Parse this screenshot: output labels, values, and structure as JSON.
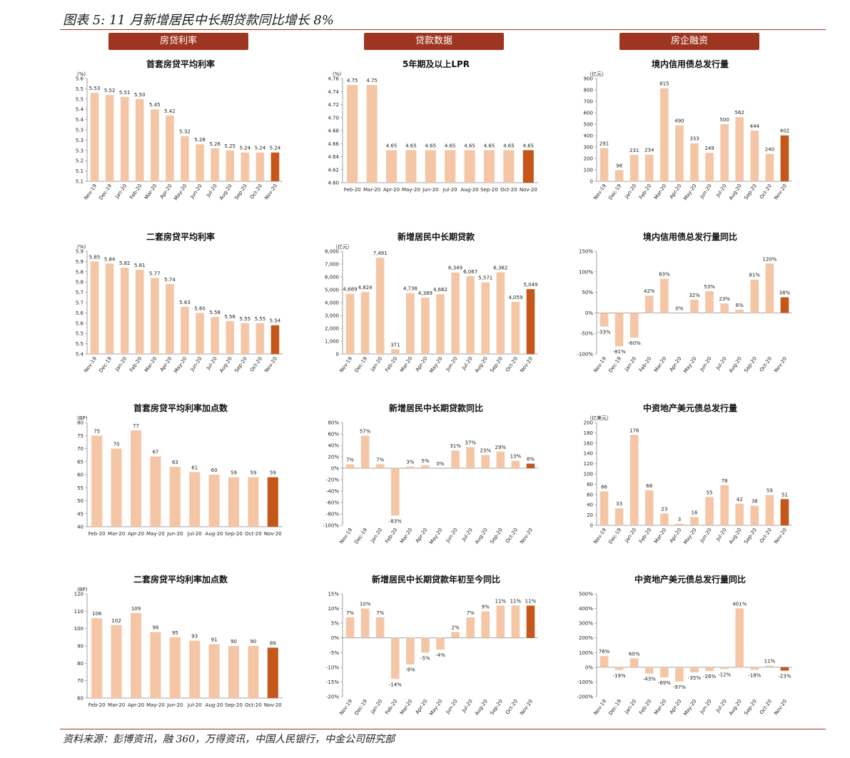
{
  "figure_title": "图表 5: 11 月新增居民中长期贷款同比增长 8%",
  "headers": [
    "房贷利率",
    "贷款数据",
    "房企融资"
  ],
  "source": "资料来源：彭博资讯，融 360，万得资讯，中国人民银行，中金公司研究部",
  "colors": {
    "bar": "#f5c6a5",
    "highlight": "#c5571a",
    "axis": "#888888",
    "header": "#9e3520"
  },
  "chart_data": [
    {
      "id": "c1",
      "type": "bar",
      "title": "首套房贷平均利率",
      "unit": "(%)",
      "ylim": [
        5.1,
        5.6
      ],
      "ystep": 0.05,
      "ydec": 1,
      "rot": true,
      "categories": [
        "Nov-19",
        "Dec-19",
        "Jan-20",
        "Feb-20",
        "Mar-20",
        "Apr-20",
        "May-20",
        "Jun-20",
        "Jul-20",
        "Aug-20",
        "Sep-20",
        "Oct-20",
        "Nov-20"
      ],
      "values": [
        5.53,
        5.52,
        5.51,
        5.5,
        5.45,
        5.42,
        5.32,
        5.28,
        5.26,
        5.25,
        5.24,
        5.24,
        5.24
      ],
      "labels": [
        "5.53",
        "5.52",
        "5.51",
        "5.50",
        "5.45",
        "5.42",
        "5.32",
        "5.28",
        "5.26",
        "5.25",
        "5.24",
        "5.24",
        "5.24"
      ]
    },
    {
      "id": "c2",
      "type": "bar",
      "title": "5年期及以上LPR",
      "unit": "(%)",
      "ylim": [
        4.6,
        4.76
      ],
      "ystep": 0.02,
      "ydec": 2,
      "rot": false,
      "categories": [
        "Feb-20",
        "Mar-20",
        "Apr-20",
        "May-20",
        "Jun-20",
        "Jul-20",
        "Aug-20",
        "Sep-20",
        "Oct-20",
        "Nov-20"
      ],
      "values": [
        4.75,
        4.75,
        4.65,
        4.65,
        4.65,
        4.65,
        4.65,
        4.65,
        4.65,
        4.65
      ],
      "labels": [
        "4.75",
        "4.75",
        "4.65",
        "4.65",
        "4.65",
        "4.65",
        "4.65",
        "4.65",
        "4.65",
        "4.65"
      ]
    },
    {
      "id": "c3",
      "type": "bar",
      "title": "境内信用债总发行量",
      "unit": "（亿元）",
      "ylim": [
        0,
        900
      ],
      "ystep": 100,
      "ydec": 0,
      "rot": true,
      "categories": [
        "Nov-19",
        "Dec-19",
        "Jan-20",
        "Feb-20",
        "Mar-20",
        "Apr-20",
        "May-20",
        "Jun-20",
        "Jul-20",
        "Aug-20",
        "Sep-20",
        "Oct-20",
        "Nov-20"
      ],
      "values": [
        291,
        98,
        231,
        234,
        815,
        490,
        333,
        249,
        500,
        562,
        444,
        240,
        402
      ],
      "labels": [
        "291",
        "98",
        "231",
        "234",
        "815",
        "490",
        "333",
        "249",
        "500",
        "562",
        "444",
        "240",
        "402"
      ]
    },
    {
      "id": "c4",
      "type": "bar",
      "title": "二套房贷平均利率",
      "unit": "(%)",
      "ylim": [
        5.4,
        5.9
      ],
      "ystep": 0.05,
      "ydec": 1,
      "rot": true,
      "categories": [
        "Nov-19",
        "Dec-19",
        "Jan-20",
        "Feb-20",
        "Mar-20",
        "Apr-20",
        "May-20",
        "Jun-20",
        "Jul-20",
        "Aug-20",
        "Sep-20",
        "Oct-20",
        "Nov-20"
      ],
      "values": [
        5.85,
        5.84,
        5.82,
        5.81,
        5.77,
        5.74,
        5.63,
        5.6,
        5.58,
        5.56,
        5.55,
        5.55,
        5.54
      ],
      "labels": [
        "5.85",
        "5.84",
        "5.82",
        "5.81",
        "5.77",
        "5.74",
        "5.63",
        "5.60",
        "5.58",
        "5.56",
        "5.55",
        "5.55",
        "5.54"
      ]
    },
    {
      "id": "c5",
      "type": "bar",
      "title": "新增居民中长期贷款",
      "unit": "（亿元）",
      "ylim": [
        0,
        8000
      ],
      "ystep": 1000,
      "ydec": 0,
      "comma": true,
      "rot": true,
      "categories": [
        "Nov-19",
        "Dec-19",
        "Jan-20",
        "Feb-20",
        "Mar-20",
        "Apr-20",
        "May-20",
        "Jun-20",
        "Jul-20",
        "Aug-20",
        "Sep-20",
        "Oct-20",
        "Nov-20"
      ],
      "values": [
        4689,
        4824,
        7491,
        371,
        4738,
        4389,
        4662,
        6349,
        6067,
        5571,
        6362,
        4059,
        5049
      ],
      "labels": [
        "4,689",
        "4,824",
        "7,491",
        "371",
        "4,738",
        "4,389",
        "4,662",
        "6,349",
        "6,067",
        "5,571",
        "6,362",
        "4,059",
        "5,049"
      ]
    },
    {
      "id": "c6",
      "type": "bar",
      "title": "境内信用债总发行量同比",
      "unit": "",
      "ylim": [
        -100,
        150
      ],
      "ystep": 50,
      "ydec": 0,
      "pct": true,
      "rot": true,
      "categories": [
        "Nov-19",
        "Dec-19",
        "Jan-20",
        "Feb-20",
        "Mar-20",
        "Apr-20",
        "May-20",
        "Jun-20",
        "Jul-20",
        "Aug-20",
        "Sep-20",
        "Oct-20",
        "Nov-20"
      ],
      "values": [
        -33,
        -81,
        -60,
        42,
        83,
        0,
        32,
        53,
        23,
        8,
        81,
        120,
        38
      ],
      "labels": [
        "-33%",
        "-81%",
        "-60%",
        "42%",
        "83%",
        "0%",
        "32%",
        "53%",
        "23%",
        "8%",
        "81%",
        "120%",
        "38%"
      ]
    },
    {
      "id": "c7",
      "type": "bar",
      "title": "首套房贷平均利率加点数",
      "unit": "(BP)",
      "ylim": [
        40,
        80
      ],
      "ystep": 5,
      "ydec": 0,
      "rot": false,
      "categories": [
        "Feb-20",
        "Mar-20",
        "Apr-20",
        "May-20",
        "Jun-20",
        "Jul-20",
        "Aug-20",
        "Sep-20",
        "Oct-20",
        "Nov-20"
      ],
      "values": [
        75,
        70,
        77,
        67,
        63,
        61,
        60,
        59,
        59,
        59
      ],
      "labels": [
        "75",
        "70",
        "77",
        "67",
        "63",
        "61",
        "60",
        "59",
        "59",
        "59"
      ]
    },
    {
      "id": "c8",
      "type": "bar",
      "title": "新增居民中长期贷款同比",
      "unit": "",
      "ylim": [
        -100,
        80
      ],
      "ystep": 20,
      "ydec": 0,
      "pct": true,
      "rot": true,
      "categories": [
        "Nov-19",
        "Dec-19",
        "Jan-20",
        "Feb-20",
        "Mar-20",
        "Apr-20",
        "May-20",
        "Jun-20",
        "Jul-20",
        "Aug-20",
        "Sep-20",
        "Oct-20",
        "Nov-20"
      ],
      "values": [
        7,
        57,
        7,
        -83,
        3,
        5,
        0,
        31,
        37,
        23,
        29,
        13,
        8
      ],
      "labels": [
        "7%",
        "57%",
        "7%",
        "-83%",
        "3%",
        "5%",
        "0%",
        "31%",
        "37%",
        "23%",
        "29%",
        "13%",
        "8%"
      ]
    },
    {
      "id": "c9",
      "type": "bar",
      "title": "中资地产美元债总发行量",
      "unit": "（亿美元）",
      "ylim": [
        0,
        200
      ],
      "ystep": 20,
      "ydec": 0,
      "rot": true,
      "categories": [
        "Nov-19",
        "Dec-19",
        "Jan-20",
        "Feb-20",
        "Mar-20",
        "Apr-20",
        "May-20",
        "Jun-20",
        "Jul-20",
        "Aug-20",
        "Sep-20",
        "Oct-20",
        "Nov-20"
      ],
      "values": [
        66,
        33,
        176,
        68,
        23,
        3,
        16,
        55,
        78,
        42,
        38,
        59,
        51
      ],
      "labels": [
        "66",
        "33",
        "176",
        "68",
        "23",
        "3",
        "16",
        "55",
        "78",
        "42",
        "38",
        "59",
        "51"
      ]
    },
    {
      "id": "c10",
      "type": "bar",
      "title": "二套房贷平均利率加点数",
      "unit": "(BP)",
      "ylim": [
        60,
        120
      ],
      "ystep": 10,
      "ydec": 0,
      "rot": false,
      "categories": [
        "Feb-20",
        "Mar-20",
        "Apr-20",
        "May-20",
        "Jun-20",
        "Jul-20",
        "Aug-20",
        "Sep-20",
        "Oct-20",
        "Nov-20"
      ],
      "values": [
        106,
        102,
        109,
        98,
        95,
        93,
        91,
        90,
        90,
        89
      ],
      "labels": [
        "106",
        "102",
        "109",
        "98",
        "95",
        "93",
        "91",
        "90",
        "90",
        "89"
      ]
    },
    {
      "id": "c11",
      "type": "bar",
      "title": "新增居民中长期贷款年初至今同比",
      "unit": "",
      "ylim": [
        -20,
        15
      ],
      "ystep": 5,
      "ydec": 0,
      "pct": true,
      "rot": true,
      "categories": [
        "Nov-19",
        "Dec-19",
        "Jan-20",
        "Feb-20",
        "Mar-20",
        "Apr-20",
        "May-20",
        "Jun-20",
        "Jul-20",
        "Aug-20",
        "Sep-20",
        "Oct-20",
        "Nov-20"
      ],
      "values": [
        7,
        10,
        7,
        -14,
        -9,
        -5,
        -4,
        2,
        7,
        9,
        11,
        11,
        11
      ],
      "labels": [
        "7%",
        "10%",
        "7%",
        "-14%",
        "-9%",
        "-5%",
        "-4%",
        "2%",
        "7%",
        "9%",
        "11%",
        "11%",
        "11%"
      ]
    },
    {
      "id": "c12",
      "type": "bar",
      "title": "中资地产美元债总发行量同比",
      "unit": "",
      "ylim": [
        -200,
        500
      ],
      "ystep": 100,
      "ydec": 0,
      "pct": true,
      "rot": true,
      "categories": [
        "Nov-19",
        "Dec-19",
        "Jan-20",
        "Feb-20",
        "Mar-20",
        "Apr-20",
        "May-20",
        "Jun-20",
        "Jul-20",
        "Aug-20",
        "Sep-20",
        "Oct-20",
        "Nov-20"
      ],
      "values": [
        76,
        -19,
        60,
        -43,
        -69,
        -97,
        -35,
        -26,
        -12,
        401,
        -18,
        11,
        -23
      ],
      "labels": [
        "76%",
        "-19%",
        "60%",
        "-43%",
        "-69%",
        "-97%",
        "-35%",
        "-26%",
        "-12%",
        "401%",
        "-18%",
        "11%",
        "-23%"
      ]
    }
  ]
}
